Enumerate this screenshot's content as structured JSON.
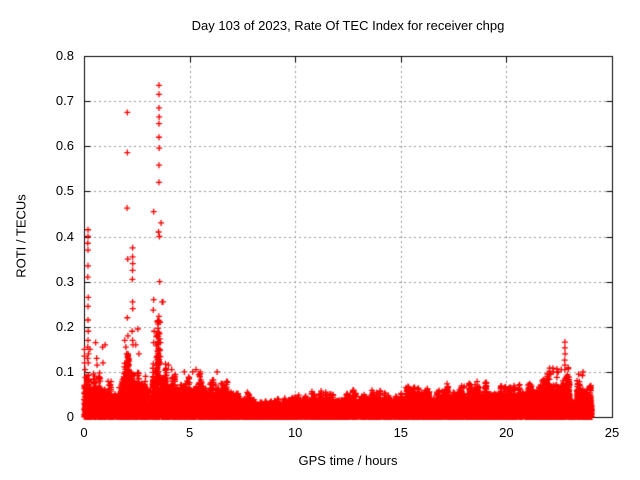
{
  "chart_data": {
    "type": "scatter",
    "title": "Day 103 of 2023, Rate Of TEC Index for receiver chpg",
    "xlabel": "GPS time / hours",
    "ylabel": "ROTI / TECUs",
    "xlim": [
      0,
      25
    ],
    "ylim": [
      0,
      0.8
    ],
    "xticks": [
      0,
      5,
      10,
      15,
      20,
      25
    ],
    "xtick_labels": [
      "0",
      "5",
      "10",
      "15",
      "20",
      "25"
    ],
    "yticks": [
      0,
      0.1,
      0.2,
      0.3,
      0.4,
      0.5,
      0.6,
      0.7,
      0.8
    ],
    "ytick_labels": [
      "0",
      "0.1",
      "0.2",
      "0.3",
      "0.4",
      "0.5",
      "0.6",
      "0.7",
      "0.8"
    ],
    "grid": true,
    "legend": "none",
    "marker": "plus",
    "colors": {
      "marker": "#ff0000",
      "grid": "#999999",
      "axis": "#000000",
      "text": "#000000",
      "background": "#ffffff"
    },
    "x_data_range": [
      0,
      24.05
    ],
    "outliers": [
      [
        0.02,
        0.15
      ],
      [
        0.02,
        0.135
      ],
      [
        0.03,
        0.12
      ],
      [
        0.05,
        0.105
      ],
      [
        0.19,
        0.415
      ],
      [
        0.19,
        0.4
      ],
      [
        0.18,
        0.385
      ],
      [
        0.19,
        0.37
      ],
      [
        0.19,
        0.335
      ],
      [
        0.18,
        0.31
      ],
      [
        0.2,
        0.265
      ],
      [
        0.19,
        0.245
      ],
      [
        0.19,
        0.215
      ],
      [
        0.2,
        0.19
      ],
      [
        0.19,
        0.17
      ],
      [
        0.18,
        0.155
      ],
      [
        0.21,
        0.14
      ],
      [
        0.17,
        0.13
      ],
      [
        0.2,
        0.12
      ],
      [
        0.28,
        0.15
      ],
      [
        0.55,
        0.165
      ],
      [
        0.6,
        0.13
      ],
      [
        0.62,
        0.115
      ],
      [
        0.88,
        0.155
      ],
      [
        0.9,
        0.12
      ],
      [
        1.0,
        0.16
      ],
      [
        1.93,
        0.17
      ],
      [
        1.98,
        0.155
      ],
      [
        2.02,
        0.14
      ],
      [
        2.05,
        0.675
      ],
      [
        2.05,
        0.586
      ],
      [
        2.04,
        0.463
      ],
      [
        2.07,
        0.35
      ],
      [
        2.05,
        0.22
      ],
      [
        2.08,
        0.18
      ],
      [
        2.3,
        0.375
      ],
      [
        2.3,
        0.355
      ],
      [
        2.31,
        0.34
      ],
      [
        2.3,
        0.325
      ],
      [
        2.29,
        0.305
      ],
      [
        2.3,
        0.255
      ],
      [
        2.31,
        0.24
      ],
      [
        2.28,
        0.19
      ],
      [
        2.3,
        0.17
      ],
      [
        2.32,
        0.16
      ],
      [
        2.45,
        0.16
      ],
      [
        2.55,
        0.195
      ],
      [
        2.6,
        0.14
      ],
      [
        3.3,
        0.455
      ],
      [
        3.3,
        0.26
      ],
      [
        3.28,
        0.237
      ],
      [
        3.32,
        0.19
      ],
      [
        3.3,
        0.165
      ],
      [
        3.55,
        0.735
      ],
      [
        3.55,
        0.715
      ],
      [
        3.55,
        0.685
      ],
      [
        3.56,
        0.665
      ],
      [
        3.55,
        0.65
      ],
      [
        3.55,
        0.62
      ],
      [
        3.56,
        0.596
      ],
      [
        3.55,
        0.558
      ],
      [
        3.55,
        0.52
      ],
      [
        3.53,
        0.41
      ],
      [
        3.57,
        0.4
      ],
      [
        3.65,
        0.43
      ],
      [
        3.58,
        0.3
      ],
      [
        3.7,
        0.255
      ],
      [
        3.74,
        0.255
      ],
      [
        3.6,
        0.21
      ],
      [
        3.57,
        0.185
      ],
      [
        3.62,
        0.165
      ],
      [
        3.55,
        0.15
      ],
      [
        4.0,
        0.115
      ],
      [
        4.15,
        0.105
      ],
      [
        4.75,
        0.1
      ],
      [
        5.15,
        0.1
      ],
      [
        5.3,
        0.105
      ],
      [
        5.5,
        0.1
      ],
      [
        6.3,
        0.1
      ],
      [
        22.1,
        0.095
      ],
      [
        22.2,
        0.108
      ],
      [
        22.22,
        0.1
      ],
      [
        22.45,
        0.1
      ],
      [
        22.6,
        0.105
      ],
      [
        22.77,
        0.166
      ],
      [
        22.77,
        0.153
      ],
      [
        22.78,
        0.14
      ],
      [
        22.76,
        0.126
      ],
      [
        22.77,
        0.115
      ],
      [
        22.77,
        0.105
      ],
      [
        23.42,
        0.095
      ],
      [
        23.63,
        0.1
      ],
      [
        23.6,
        0.092
      ]
    ],
    "band_profile": [
      [
        0.0,
        0.15,
        0.115,
        1.3
      ],
      [
        0.15,
        0.45,
        0.1,
        1.2
      ],
      [
        0.45,
        1.0,
        0.1,
        1.2
      ],
      [
        1.0,
        1.8,
        0.085,
        1.0
      ],
      [
        1.8,
        2.45,
        0.16,
        1.35
      ],
      [
        2.45,
        2.75,
        0.12,
        1.1
      ],
      [
        2.75,
        3.25,
        0.1,
        1.0
      ],
      [
        3.25,
        3.42,
        0.13,
        1.1
      ],
      [
        3.42,
        3.62,
        0.3,
        1.5
      ],
      [
        3.62,
        3.85,
        0.14,
        1.1
      ],
      [
        3.85,
        4.35,
        0.11,
        1.0
      ],
      [
        4.35,
        4.75,
        0.08,
        1.0
      ],
      [
        4.75,
        5.25,
        0.1,
        1.0
      ],
      [
        5.25,
        5.65,
        0.11,
        1.0
      ],
      [
        5.65,
        6.15,
        0.09,
        1.0
      ],
      [
        6.15,
        6.55,
        0.1,
        1.0
      ],
      [
        6.55,
        7.25,
        0.085,
        1.0
      ],
      [
        7.25,
        8.05,
        0.065,
        1.0
      ],
      [
        8.05,
        9.6,
        0.045,
        1.0
      ],
      [
        9.6,
        10.4,
        0.052,
        1.0
      ],
      [
        10.4,
        11.3,
        0.062,
        1.0
      ],
      [
        11.3,
        12.1,
        0.058,
        1.0
      ],
      [
        12.1,
        13.1,
        0.062,
        1.0
      ],
      [
        13.1,
        14.1,
        0.068,
        1.0
      ],
      [
        14.1,
        15.1,
        0.06,
        1.0
      ],
      [
        15.1,
        16.1,
        0.07,
        1.0
      ],
      [
        16.1,
        17.1,
        0.068,
        1.0
      ],
      [
        17.1,
        18.1,
        0.075,
        1.0
      ],
      [
        18.1,
        19.6,
        0.085,
        1.05
      ],
      [
        19.6,
        20.6,
        0.075,
        1.05
      ],
      [
        20.6,
        21.9,
        0.09,
        1.1
      ],
      [
        21.9,
        23.0,
        0.115,
        1.25
      ],
      [
        23.0,
        23.35,
        0.055,
        1.0
      ],
      [
        23.35,
        23.75,
        0.1,
        1.1
      ],
      [
        23.75,
        24.05,
        0.075,
        1.3
      ]
    ],
    "synth": {
      "seed": 42,
      "points_per_hour": 620,
      "marker_half_px": 3
    }
  }
}
